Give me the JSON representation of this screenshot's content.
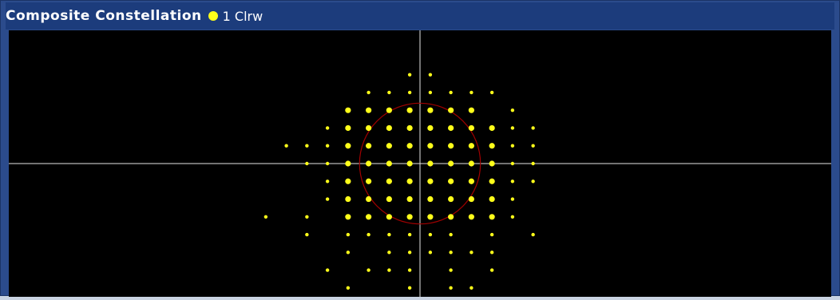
{
  "window": {
    "title": "Composite Constellation",
    "trace_label": "1 Clrw"
  },
  "colors": {
    "background": "#000000",
    "points": "#ffff1a",
    "axes": "#e6e6e6",
    "circle": "#a00000",
    "title_bar": "#1c3c7c",
    "frame": "#2b4b8c"
  },
  "chart_data": {
    "type": "scatter",
    "title": "Composite Constellation",
    "series": [
      {
        "name": "1 Clrw",
        "points": [
          [
            -1,
            5
          ],
          [
            -1,
            3
          ],
          [
            1,
            5
          ],
          [
            1,
            3
          ],
          [
            -5,
            4
          ],
          [
            -3,
            4
          ],
          [
            -1,
            4
          ],
          [
            1,
            4
          ],
          [
            3,
            4
          ],
          [
            5,
            4
          ],
          [
            7,
            4
          ],
          [
            -7,
            3
          ],
          [
            -5,
            3
          ],
          [
            -3,
            3
          ],
          [
            3,
            3
          ],
          [
            5,
            3
          ],
          [
            9,
            3
          ],
          [
            -9,
            2
          ],
          [
            -7,
            2
          ],
          [
            -5,
            2
          ],
          [
            -3,
            2
          ],
          [
            -1,
            2
          ],
          [
            1,
            2
          ],
          [
            3,
            2
          ],
          [
            5,
            2
          ],
          [
            7,
            2
          ],
          [
            9,
            2
          ],
          [
            11,
            2
          ],
          [
            -13,
            1
          ],
          [
            -11,
            1
          ],
          [
            -9,
            1
          ],
          [
            -7,
            1
          ],
          [
            -5,
            1
          ],
          [
            -3,
            1
          ],
          [
            -1,
            1
          ],
          [
            1,
            1
          ],
          [
            3,
            1
          ],
          [
            5,
            1
          ],
          [
            7,
            1
          ],
          [
            9,
            1
          ],
          [
            11,
            1
          ],
          [
            -11,
            0
          ],
          [
            -9,
            0
          ],
          [
            -7,
            0
          ],
          [
            -5,
            0
          ],
          [
            -3,
            0
          ],
          [
            -1,
            0
          ],
          [
            1,
            0
          ],
          [
            3,
            0
          ],
          [
            5,
            0
          ],
          [
            7,
            0
          ],
          [
            9,
            0
          ],
          [
            11,
            0
          ],
          [
            -9,
            -1
          ],
          [
            -7,
            -1
          ],
          [
            -5,
            -1
          ],
          [
            -3,
            -1
          ],
          [
            -1,
            -1
          ],
          [
            1,
            -1
          ],
          [
            3,
            -1
          ],
          [
            5,
            -1
          ],
          [
            7,
            -1
          ],
          [
            9,
            -1
          ],
          [
            11,
            -1
          ],
          [
            -9,
            -2
          ],
          [
            -7,
            -2
          ],
          [
            -5,
            -2
          ],
          [
            -3,
            -2
          ],
          [
            -1,
            -2
          ],
          [
            1,
            -2
          ],
          [
            3,
            -2
          ],
          [
            5,
            -2
          ],
          [
            7,
            -2
          ],
          [
            9,
            -2
          ],
          [
            -15,
            -3
          ],
          [
            -11,
            -3
          ],
          [
            -7,
            -3
          ],
          [
            -5,
            -3
          ],
          [
            -3,
            -3
          ],
          [
            -1,
            -3
          ],
          [
            1,
            -3
          ],
          [
            3,
            -3
          ],
          [
            5,
            -3
          ],
          [
            7,
            -3
          ],
          [
            9,
            -3
          ],
          [
            -11,
            -4
          ],
          [
            -7,
            -4
          ],
          [
            -5,
            -4
          ],
          [
            -3,
            -4
          ],
          [
            -1,
            -4
          ],
          [
            1,
            -4
          ],
          [
            3,
            -4
          ],
          [
            7,
            -4
          ],
          [
            11,
            -4
          ],
          [
            -7,
            -5
          ],
          [
            -3,
            -5
          ],
          [
            -1,
            -5
          ],
          [
            1,
            -5
          ],
          [
            3,
            -5
          ],
          [
            5,
            -5
          ],
          [
            7,
            -5
          ],
          [
            -9,
            -6
          ],
          [
            -5,
            -6
          ],
          [
            -3,
            -6
          ],
          [
            -1,
            -6
          ],
          [
            3,
            -6
          ],
          [
            7,
            -6
          ],
          [
            -7,
            -7
          ],
          [
            -1,
            -7
          ],
          [
            3,
            -7
          ],
          [
            5,
            -7
          ]
        ]
      }
    ],
    "xlim": [
      -40,
      40
    ],
    "ylim": [
      -7.5,
      7.5
    ],
    "reference_circle_radius": 3.4,
    "grid": false
  }
}
